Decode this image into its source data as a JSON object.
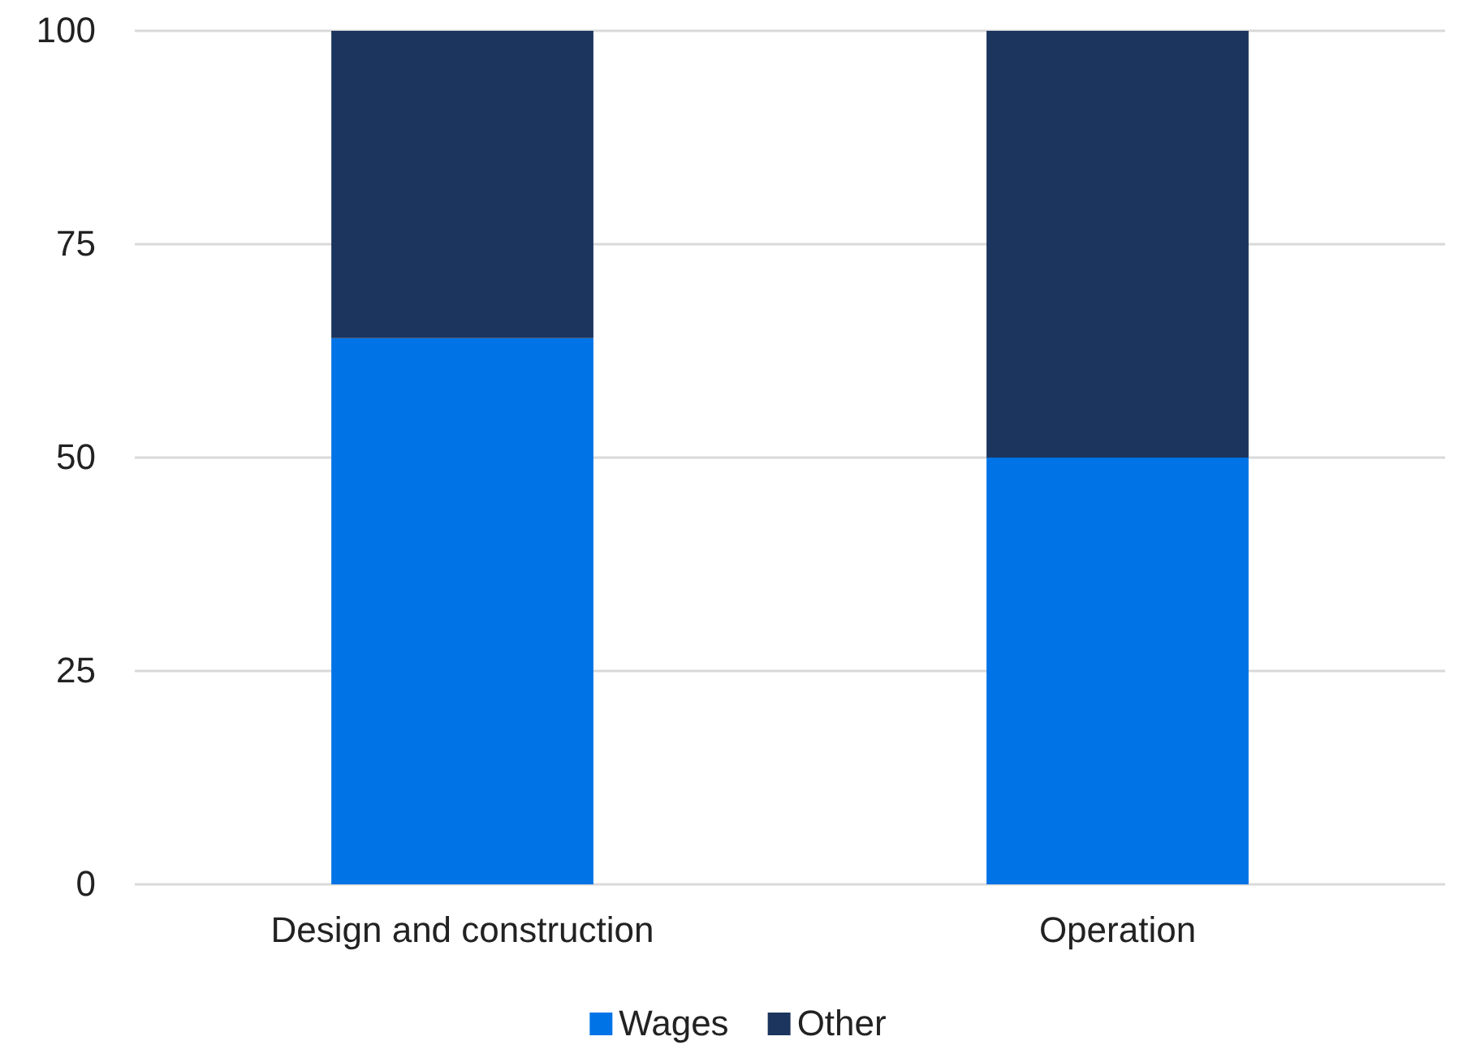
{
  "chart_data": {
    "type": "bar",
    "stacked": true,
    "categories": [
      "Design and construction",
      "Operation"
    ],
    "series": [
      {
        "name": "Wages",
        "color": "#0073e6",
        "values": [
          64,
          50
        ]
      },
      {
        "name": "Other",
        "color": "#1c355e",
        "values": [
          36,
          50
        ]
      }
    ],
    "ylim": [
      0,
      100
    ],
    "yticks": [
      0,
      25,
      50,
      75,
      100
    ],
    "grid": "y",
    "legend": "bottom"
  }
}
